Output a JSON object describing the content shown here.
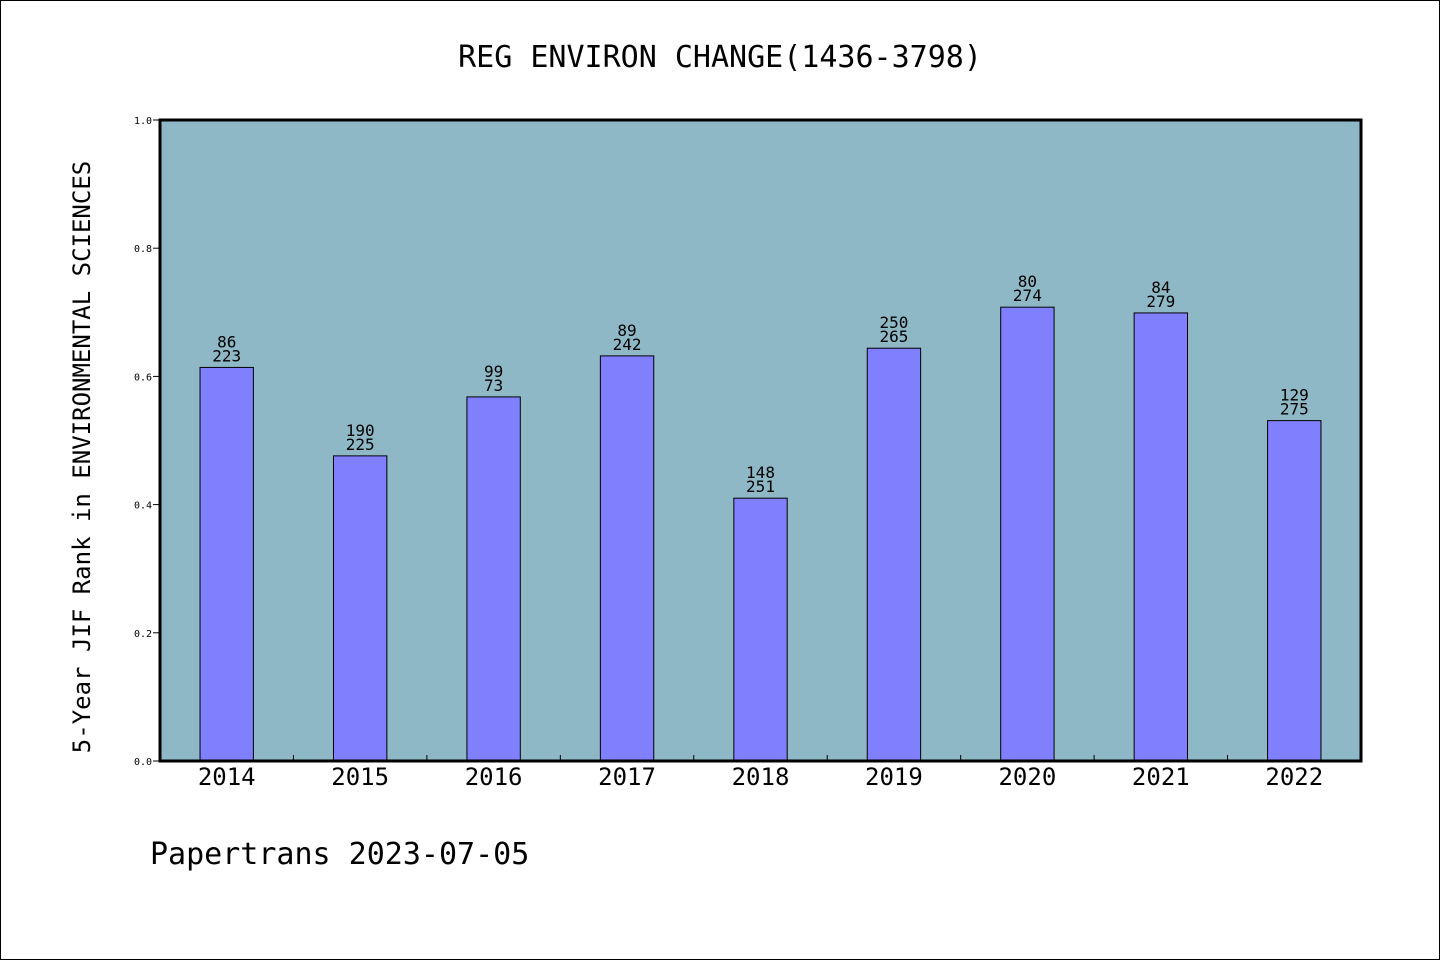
{
  "chart_data": {
    "type": "bar",
    "title": "REG ENVIRON CHANGE(1436-3798)",
    "xlabel": "",
    "ylabel": "5-Year JIF Rank in ENVIRONMENTAL SCIENCES",
    "categories": [
      "2014",
      "2015",
      "2016",
      "2017",
      "2018",
      "2019",
      "2020",
      "2021",
      "2022"
    ],
    "values": [
      0.614,
      0.476,
      0.568,
      0.632,
      0.41,
      0.644,
      0.708,
      0.699,
      0.531
    ],
    "bar_labels_top": [
      "86",
      "190",
      "99",
      "89",
      "148",
      "250",
      "80",
      "84",
      "129"
    ],
    "bar_labels_bottom": [
      "223",
      "225",
      "73",
      "242",
      "251",
      "265",
      "274",
      "279",
      "275"
    ],
    "ylim": [
      0.0,
      1.0
    ],
    "yticks": [
      "0.0",
      "0.2",
      "0.4",
      "0.6",
      "0.8",
      "1.0"
    ],
    "grid": false,
    "colors": {
      "plot_background": "#8fb8c6",
      "bar_fill": "#8080ff",
      "bar_stroke": "#000000"
    }
  },
  "footer": {
    "text": "Papertrans 2023-07-05"
  }
}
